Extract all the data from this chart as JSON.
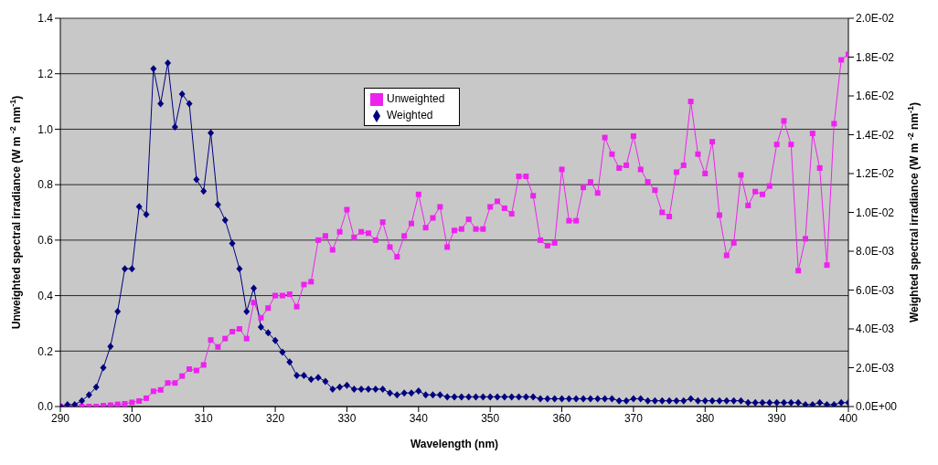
{
  "chart_data": {
    "type": "line",
    "xlabel": "Wavelength (nm)",
    "ylabel": "Unweighted spectral irradiance (W m $^{-2}$ nm$^{-1}$)",
    "y2label": "Weighted spectral irradiance (W m $^{-2}$ nm$^{-1}$)",
    "x": [
      290,
      291,
      292,
      293,
      294,
      295,
      296,
      297,
      298,
      299,
      300,
      301,
      302,
      303,
      304,
      305,
      306,
      307,
      308,
      309,
      310,
      311,
      312,
      313,
      314,
      315,
      316,
      317,
      318,
      319,
      320,
      321,
      322,
      323,
      324,
      325,
      326,
      327,
      328,
      329,
      330,
      331,
      332,
      333,
      334,
      335,
      336,
      337,
      338,
      339,
      340,
      341,
      342,
      343,
      344,
      345,
      346,
      347,
      348,
      349,
      350,
      351,
      352,
      353,
      354,
      355,
      356,
      357,
      358,
      359,
      360,
      361,
      362,
      363,
      364,
      365,
      366,
      367,
      368,
      369,
      370,
      371,
      372,
      373,
      374,
      375,
      376,
      377,
      378,
      379,
      380,
      381,
      382,
      383,
      384,
      385,
      386,
      387,
      388,
      389,
      390,
      391,
      392,
      393,
      394,
      395,
      396,
      397,
      398,
      399,
      400
    ],
    "series": [
      {
        "name": "Unweighted",
        "color": "#ee22ee",
        "marker": "square",
        "values": [
          0,
          0,
          0,
          0,
          0,
          0,
          0.003,
          0.005,
          0.008,
          0.01,
          0.015,
          0.02,
          0.03,
          0.055,
          0.06,
          0.085,
          0.085,
          0.11,
          0.135,
          0.13,
          0.15,
          0.24,
          0.215,
          0.245,
          0.27,
          0.28,
          0.245,
          0.375,
          0.32,
          0.355,
          0.4,
          0.4,
          0.405,
          0.36,
          0.44,
          0.45,
          0.6,
          0.615,
          0.565,
          0.63,
          0.71,
          0.61,
          0.63,
          0.625,
          0.6,
          0.665,
          0.575,
          0.54,
          0.615,
          0.66,
          0.765,
          0.645,
          0.68,
          0.72,
          0.575,
          0.635,
          0.64,
          0.675,
          0.64,
          0.64,
          0.72,
          0.74,
          0.715,
          0.695,
          0.83,
          0.83,
          0.76,
          0.6,
          0.58,
          0.59,
          0.855,
          0.67,
          0.67,
          0.79,
          0.81,
          0.77,
          0.97,
          0.91,
          0.86,
          0.87,
          0.975,
          0.855,
          0.81,
          0.78,
          0.7,
          0.685,
          0.845,
          0.87,
          1.1,
          0.91,
          0.84,
          0.955,
          0.69,
          0.545,
          0.59,
          0.835,
          0.725,
          0.775,
          0.765,
          0.795,
          0.945,
          1.03,
          0.945,
          0.49,
          0.605,
          0.985,
          0.86,
          0.51,
          1.02,
          1.25,
          1.27
        ]
      },
      {
        "name": "Weighted",
        "color": "#000080",
        "marker": "diamond",
        "axis": "y2",
        "values": [
          0,
          0.0001,
          0.0001,
          0.0003,
          0.0006,
          0.001,
          0.002,
          0.0031,
          0.0049,
          0.0071,
          0.0071,
          0.0103,
          0.0099,
          0.0174,
          0.0156,
          0.0177,
          0.0144,
          0.0161,
          0.0156,
          0.0117,
          0.0111,
          0.0141,
          0.0104,
          0.0096,
          0.0084,
          0.0071,
          0.0049,
          0.0061,
          0.0041,
          0.0038,
          0.0034,
          0.0028,
          0.0023,
          0.0016,
          0.0016,
          0.0014,
          0.0015,
          0.0013,
          0.0009,
          0.001,
          0.0011,
          0.0009,
          0.0009,
          0.0009,
          0.0009,
          0.0009,
          0.0007,
          0.0006,
          0.0007,
          0.0007,
          0.0008,
          0.0006,
          0.0006,
          0.0006,
          0.0005,
          0.0005,
          0.0005,
          0.0005,
          0.0005,
          0.0005,
          0.0005,
          0.0005,
          0.0005,
          0.0005,
          0.0005,
          0.0005,
          0.0005,
          0.0004,
          0.0004,
          0.0004,
          0.0004,
          0.0004,
          0.0004,
          0.0004,
          0.0004,
          0.0004,
          0.0004,
          0.0004,
          0.0003,
          0.0003,
          0.0004,
          0.0004,
          0.0003,
          0.0003,
          0.0003,
          0.0003,
          0.0003,
          0.0003,
          0.0004,
          0.0003,
          0.0003,
          0.0003,
          0.0003,
          0.0003,
          0.0003,
          0.0003,
          0.0002,
          0.0002,
          0.0002,
          0.0002,
          0.0002,
          0.0002,
          0.0002,
          0.0002,
          0.0001,
          0.0001,
          0.0002,
          0.0001,
          0.0001,
          0.0002,
          0.0002
        ]
      }
    ],
    "xlim": [
      290,
      400
    ],
    "xticks": [
      290,
      300,
      310,
      320,
      330,
      340,
      350,
      360,
      370,
      380,
      390,
      400
    ],
    "ylim": [
      0,
      1.4
    ],
    "yticks": [
      {
        "value": 0,
        "label": "0.0"
      },
      {
        "value": 0.2,
        "label": "0.2"
      },
      {
        "value": 0.4,
        "label": "0.4"
      },
      {
        "value": 0.6,
        "label": "0.6"
      },
      {
        "value": 0.8,
        "label": "0.8"
      },
      {
        "value": 1,
        "label": "1.0"
      },
      {
        "value": 1.2,
        "label": "1.2"
      },
      {
        "value": 1.4,
        "label": "1.4"
      }
    ],
    "y2lim": [
      0,
      0.02
    ],
    "y2ticks": [
      {
        "value": 0,
        "label": "0.0E+00"
      },
      {
        "value": 0.002,
        "label": "2.0E-03"
      },
      {
        "value": 0.004,
        "label": "4.0E-03"
      },
      {
        "value": 0.006,
        "label": "6.0E-03"
      },
      {
        "value": 0.008,
        "label": "8.0E-03"
      },
      {
        "value": 0.01,
        "label": "1.0E-02"
      },
      {
        "value": 0.012,
        "label": "1.2E-02"
      },
      {
        "value": 0.014,
        "label": "1.4E-02"
      },
      {
        "value": 0.016,
        "label": "1.6E-02"
      },
      {
        "value": 0.018,
        "label": "1.8E-02"
      },
      {
        "value": 0.02,
        "label": "2.0E-02"
      }
    ],
    "grid": "y",
    "legend": "top",
    "line_style": "solid"
  }
}
